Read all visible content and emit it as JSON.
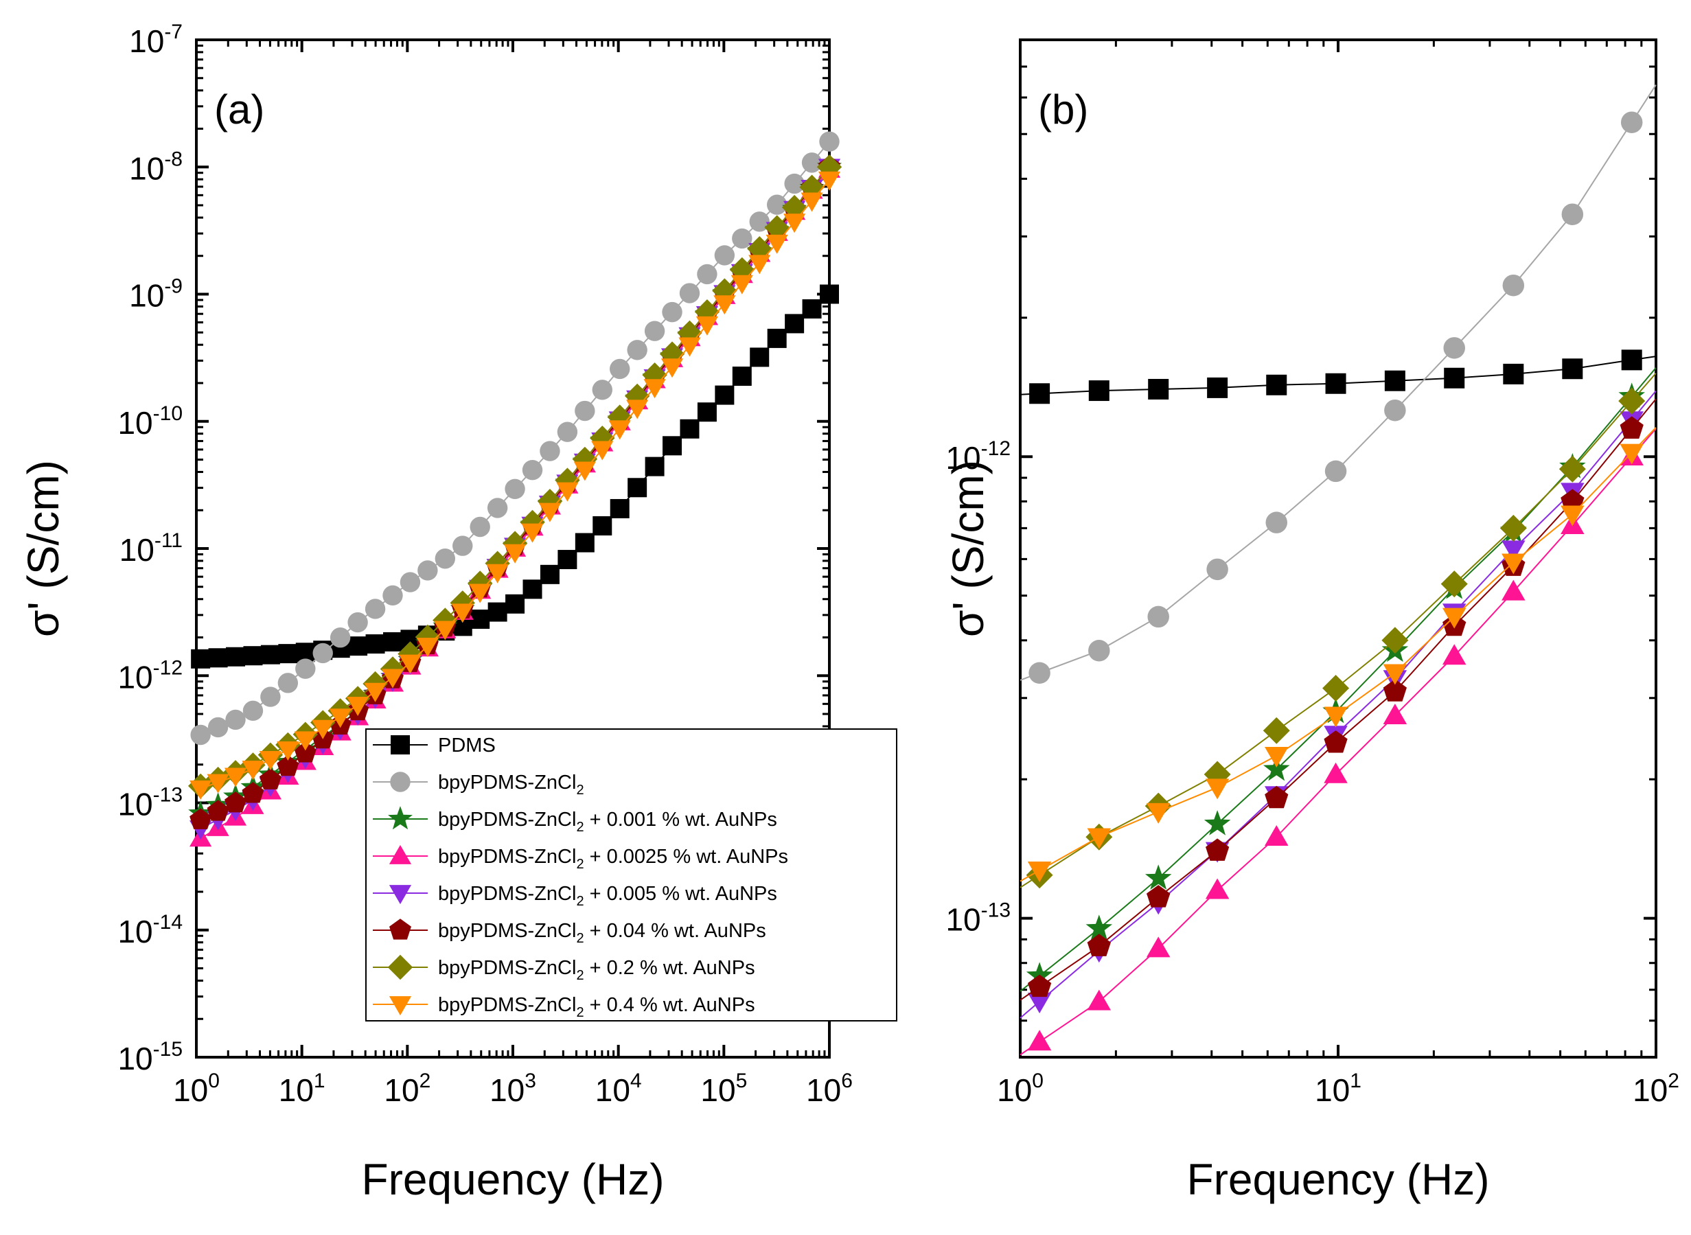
{
  "chart_data": [
    {
      "type": "scatter",
      "panel_label": "(a)",
      "xlabel": "Frequency (Hz)",
      "ylabel": "σ' (S/cm)",
      "xscale": "log",
      "yscale": "log",
      "xlim": [
        1,
        1000000
      ],
      "ylim": [
        1e-15,
        1e-07
      ],
      "xticks": [
        {
          "base": "10",
          "exp": "0"
        },
        {
          "base": "10",
          "exp": "1"
        },
        {
          "base": "10",
          "exp": "2"
        },
        {
          "base": "10",
          "exp": "3"
        },
        {
          "base": "10",
          "exp": "4"
        },
        {
          "base": "10",
          "exp": "5"
        },
        {
          "base": "10",
          "exp": "6"
        }
      ],
      "yticks": [
        {
          "base": "10",
          "exp": "-15"
        },
        {
          "base": "10",
          "exp": "-14"
        },
        {
          "base": "10",
          "exp": "-13"
        },
        {
          "base": "10",
          "exp": "-12"
        },
        {
          "base": "10",
          "exp": "-11"
        },
        {
          "base": "10",
          "exp": "-10"
        },
        {
          "base": "10",
          "exp": "-9"
        },
        {
          "base": "10",
          "exp": "-8"
        },
        {
          "base": "10",
          "exp": "-7"
        }
      ],
      "legend_position": "lower-right",
      "series": [
        {
          "name": "PDMS",
          "color": "#000000",
          "marker": "square",
          "anchors": [
            [
              0,
              -11.87
            ],
            [
              1,
              -11.82
            ],
            [
              2,
              -11.72
            ],
            [
              2.5,
              -11.62
            ],
            [
              3,
              -11.45
            ],
            [
              3.5,
              -11.1
            ],
            [
              4,
              -10.7
            ],
            [
              4.5,
              -10.2
            ],
            [
              5,
              -9.8
            ],
            [
              5.5,
              -9.35
            ],
            [
              6,
              -9.0
            ]
          ]
        },
        {
          "name": "bpyPDMS-ZnCl2",
          "color": "#a6a6a6",
          "marker": "circle",
          "anchors": [
            [
              0,
              -12.48
            ],
            [
              0.5,
              -12.3
            ],
            [
              1,
              -11.97
            ],
            [
              1.5,
              -11.6
            ],
            [
              2,
              -11.28
            ],
            [
              2.5,
              -11.0
            ],
            [
              3,
              -10.55
            ],
            [
              3.5,
              -10.1
            ],
            [
              4,
              -9.6
            ],
            [
              4.5,
              -9.15
            ],
            [
              5,
              -8.7
            ],
            [
              5.5,
              -8.3
            ],
            [
              6,
              -7.8
            ]
          ]
        },
        {
          "name": "bpyPDMS-ZnCl2 + 0.001 % wt. AuNPs",
          "color": "#1a7a1a",
          "marker": "star",
          "anchors": [
            [
              0,
              -13.1
            ],
            [
              0.5,
              -12.9
            ],
            [
              1,
              -12.6
            ],
            [
              1.5,
              -12.3
            ],
            [
              2,
              -11.9
            ],
            [
              2.5,
              -11.5
            ],
            [
              3,
              -11.0
            ],
            [
              3.5,
              -10.5
            ],
            [
              4,
              -10.0
            ],
            [
              4.5,
              -9.5
            ],
            [
              5,
              -9.0
            ],
            [
              5.5,
              -8.5
            ],
            [
              6,
              -8.0
            ]
          ]
        },
        {
          "name": "bpyPDMS-ZnCl2 + 0.0025 % wt. AuNPs",
          "color": "#ff1493",
          "marker": "triangle-up",
          "anchors": [
            [
              0,
              -13.3
            ],
            [
              0.5,
              -13.05
            ],
            [
              1,
              -12.7
            ],
            [
              1.5,
              -12.35
            ],
            [
              2,
              -11.95
            ],
            [
              2.5,
              -11.52
            ],
            [
              3,
              -11.02
            ],
            [
              3.5,
              -10.52
            ],
            [
              4,
              -10.02
            ],
            [
              4.5,
              -9.52
            ],
            [
              5,
              -9.02
            ],
            [
              5.5,
              -8.52
            ],
            [
              6,
              -8.02
            ]
          ]
        },
        {
          "name": "bpyPDMS-ZnCl2 + 0.005 % wt. AuNPs",
          "color": "#8a2be2",
          "marker": "triangle-down",
          "anchors": [
            [
              0,
              -13.22
            ],
            [
              0.5,
              -13.0
            ],
            [
              1,
              -12.67
            ],
            [
              1.5,
              -12.33
            ],
            [
              2,
              -11.93
            ],
            [
              2.5,
              -11.5
            ],
            [
              3,
              -11.0
            ],
            [
              3.5,
              -10.5
            ],
            [
              4,
              -10.0
            ],
            [
              4.5,
              -9.5
            ],
            [
              5,
              -9.0
            ],
            [
              5.5,
              -8.5
            ],
            [
              6,
              -8.0
            ]
          ]
        },
        {
          "name": "bpyPDMS-ZnCl2 + 0.04 % wt. AuNPs",
          "color": "#8b0000",
          "marker": "pentagon",
          "anchors": [
            [
              0,
              -13.15
            ],
            [
              0.5,
              -12.95
            ],
            [
              1,
              -12.63
            ],
            [
              1.5,
              -12.3
            ],
            [
              2,
              -11.92
            ],
            [
              2.5,
              -11.5
            ],
            [
              3,
              -11.0
            ],
            [
              3.5,
              -10.5
            ],
            [
              4,
              -10.0
            ],
            [
              4.5,
              -9.5
            ],
            [
              5,
              -9.0
            ],
            [
              5.5,
              -8.5
            ],
            [
              6,
              -8.0
            ]
          ]
        },
        {
          "name": "bpyPDMS-ZnCl2 + 0.2 % wt. AuNPs",
          "color": "#808000",
          "marker": "diamond",
          "anchors": [
            [
              0,
              -12.88
            ],
            [
              0.5,
              -12.72
            ],
            [
              1,
              -12.48
            ],
            [
              1.5,
              -12.2
            ],
            [
              2,
              -11.85
            ],
            [
              2.5,
              -11.45
            ],
            [
              3,
              -10.98
            ],
            [
              3.5,
              -10.48
            ],
            [
              4,
              -9.98
            ],
            [
              4.5,
              -9.48
            ],
            [
              5,
              -8.98
            ],
            [
              5.5,
              -8.48
            ],
            [
              6,
              -8.0
            ]
          ]
        },
        {
          "name": "bpyPDMS-ZnCl2 + 0.4 % wt. AuNPs",
          "color": "#ff8c00",
          "marker": "triangle-down",
          "anchors": [
            [
              0,
              -12.9
            ],
            [
              0.5,
              -12.75
            ],
            [
              1,
              -12.52
            ],
            [
              1.5,
              -12.25
            ],
            [
              2,
              -11.92
            ],
            [
              2.5,
              -11.52
            ],
            [
              3,
              -11.05
            ],
            [
              3.5,
              -10.56
            ],
            [
              4,
              -10.07
            ],
            [
              4.5,
              -9.58
            ],
            [
              5,
              -9.08
            ],
            [
              5.5,
              -8.6
            ],
            [
              6,
              -8.1
            ]
          ]
        }
      ]
    },
    {
      "type": "line",
      "panel_label": "(b)",
      "xlabel": "Frequency (Hz)",
      "ylabel": "σ' (S/cm)",
      "xscale": "log",
      "yscale": "log",
      "xlim": [
        1,
        100
      ],
      "ylim": [
        5e-14,
        8e-12
      ],
      "xticks": [
        {
          "base": "10",
          "exp": "0"
        },
        {
          "base": "10",
          "exp": "1"
        },
        {
          "base": "10",
          "exp": "2"
        }
      ],
      "yticks": [
        {
          "base": "10",
          "exp": "-13"
        },
        {
          "base": "10",
          "exp": "-12"
        }
      ],
      "x": [
        1.15,
        1.77,
        2.72,
        4.17,
        6.4,
        9.83,
        15.1,
        23.2,
        35.6,
        54.6,
        83.9
      ],
      "series": [
        {
          "name": "PDMS",
          "color": "#000000",
          "marker": "square",
          "values": [
            1.37e-12,
            1.39e-12,
            1.4e-12,
            1.41e-12,
            1.43e-12,
            1.44e-12,
            1.46e-12,
            1.48e-12,
            1.51e-12,
            1.55e-12,
            1.62e-12
          ]
        },
        {
          "name": "bpyPDMS-ZnCl2",
          "color": "#a6a6a6",
          "marker": "circle",
          "values": [
            3.4e-13,
            3.8e-13,
            4.5e-13,
            5.7e-13,
            7.2e-13,
            9.3e-13,
            1.26e-12,
            1.72e-12,
            2.35e-12,
            3.35e-12,
            5.3e-12
          ]
        },
        {
          "name": "bpyPDMS-ZnCl2 + 0.001 % wt. AuNPs",
          "color": "#1a7a1a",
          "marker": "star",
          "values": [
            7.5e-14,
            9.5e-14,
            1.22e-13,
            1.6e-13,
            2.1e-13,
            2.8e-13,
            3.8e-13,
            5.2e-13,
            6.9e-13,
            9.5e-13,
            1.35e-12
          ]
        },
        {
          "name": "bpyPDMS-ZnCl2 + 0.0025 % wt. AuNPs",
          "color": "#ff1493",
          "marker": "triangle-up",
          "values": [
            5.4e-14,
            6.6e-14,
            8.6e-14,
            1.15e-13,
            1.5e-13,
            2.05e-13,
            2.75e-13,
            3.7e-13,
            5.1e-13,
            7.1e-13,
            1e-12
          ]
        },
        {
          "name": "bpyPDMS-ZnCl2 + 0.005 % wt. AuNPs",
          "color": "#8a2be2",
          "marker": "triangle-down",
          "values": [
            6.6e-14,
            8.5e-14,
            1.08e-13,
            1.4e-13,
            1.85e-13,
            2.5e-13,
            3.3e-13,
            4.6e-13,
            6.3e-13,
            8.4e-13,
            1.2e-12
          ]
        },
        {
          "name": "bpyPDMS-ZnCl2 + 0.04 % wt. AuNPs",
          "color": "#8b0000",
          "marker": "pentagon",
          "values": [
            7.1e-14,
            8.7e-14,
            1.11e-13,
            1.4e-13,
            1.82e-13,
            2.4e-13,
            3.1e-13,
            4.3e-13,
            5.8e-13,
            8e-13,
            1.15e-12
          ]
        },
        {
          "name": "bpyPDMS-ZnCl2 + 0.2 % wt. AuNPs",
          "color": "#808000",
          "marker": "diamond",
          "values": [
            1.24e-13,
            1.5e-13,
            1.75e-13,
            2.05e-13,
            2.55e-13,
            3.15e-13,
            4e-13,
            5.3e-13,
            7e-13,
            9.4e-13,
            1.32e-12
          ]
        },
        {
          "name": "bpyPDMS-ZnCl2 + 0.4 % wt. AuNPs",
          "color": "#ff8c00",
          "marker": "triangle-down",
          "values": [
            1.27e-13,
            1.5e-13,
            1.7e-13,
            1.92e-13,
            2.25e-13,
            2.75e-13,
            3.4e-13,
            4.5e-13,
            5.9e-13,
            7.5e-13,
            1.02e-12
          ]
        }
      ]
    }
  ],
  "legend": {
    "entries": [
      {
        "color": "#000000",
        "marker": "square",
        "text": "PDMS",
        "sub": "",
        "rest": ""
      },
      {
        "color": "#a6a6a6",
        "marker": "circle",
        "text": "bpyPDMS-ZnCl",
        "sub": "2",
        "rest": ""
      },
      {
        "color": "#1a7a1a",
        "marker": "star",
        "text": "bpyPDMS-ZnCl",
        "sub": "2",
        "rest": " + 0.001 % wt. AuNPs"
      },
      {
        "color": "#ff1493",
        "marker": "triangle-up",
        "text": "bpyPDMS-ZnCl",
        "sub": "2",
        "rest": " + 0.0025 % wt. AuNPs"
      },
      {
        "color": "#8a2be2",
        "marker": "triangle-down",
        "text": "bpyPDMS-ZnCl",
        "sub": "2",
        "rest": " + 0.005 % wt. AuNPs"
      },
      {
        "color": "#8b0000",
        "marker": "pentagon",
        "text": "bpyPDMS-ZnCl",
        "sub": "2",
        "rest": " + 0.04 % wt. AuNPs"
      },
      {
        "color": "#808000",
        "marker": "diamond",
        "text": "bpyPDMS-ZnCl",
        "sub": "2",
        "rest": " + 0.2 % wt. AuNPs"
      },
      {
        "color": "#ff8c00",
        "marker": "triangle-down",
        "text": "bpyPDMS-ZnCl",
        "sub": "2",
        "rest": " + 0.4 % wt. AuNPs"
      }
    ]
  }
}
